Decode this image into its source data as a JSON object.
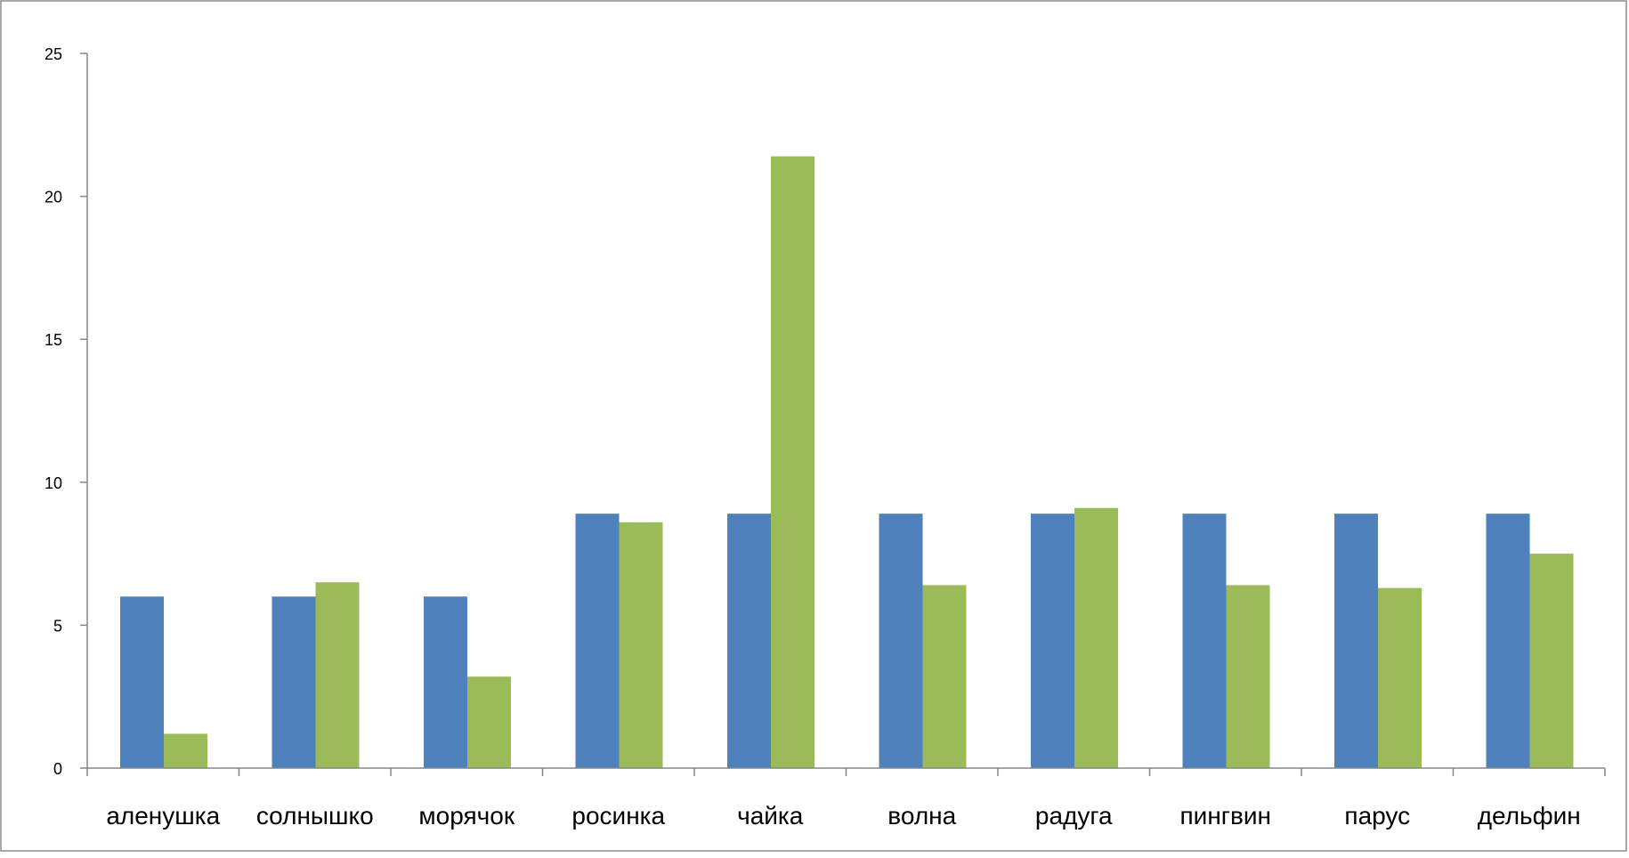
{
  "chart_data": {
    "type": "bar",
    "title": "",
    "xlabel": "",
    "ylabel": "",
    "ylim": [
      0,
      25
    ],
    "yticks": [
      0,
      5,
      10,
      15,
      20,
      25
    ],
    "yticks_text": [
      "0",
      "5",
      "10",
      "15",
      "20",
      "25"
    ],
    "grid": false,
    "legend": "none",
    "categories": [
      "аленушка",
      "солнышко",
      "морячок",
      "росинка",
      "чайка",
      "волна",
      "радуга",
      "пингвин",
      "парус",
      "дельфин"
    ],
    "series": [
      {
        "color": "#4F81BD",
        "values": [
          6,
          6,
          6,
          8.9,
          8.9,
          8.9,
          8.9,
          8.9,
          8.9,
          8.9
        ]
      },
      {
        "color": "#9BBB59",
        "values": [
          1.2,
          6.5,
          3.2,
          8.6,
          21.4,
          6.4,
          9.1,
          6.4,
          6.3,
          7.5
        ]
      }
    ]
  }
}
